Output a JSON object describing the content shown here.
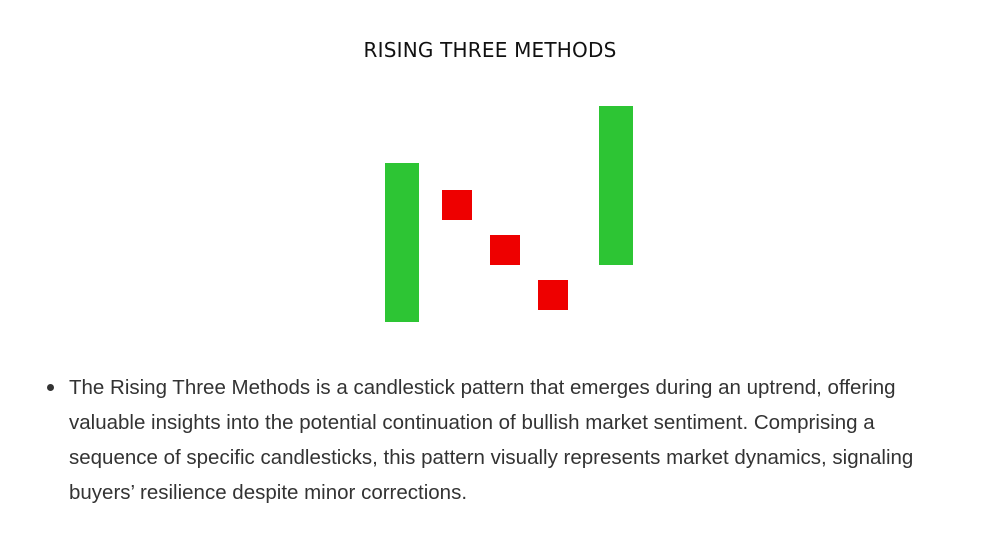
{
  "title": "RISING THREE METHODS",
  "colors": {
    "bullish": "#2dc534",
    "bearish": "#ee0000",
    "text": "#333333"
  },
  "pattern": {
    "candles": [
      {
        "direction": "bullish",
        "open": 0,
        "close": 5.3
      },
      {
        "direction": "bearish",
        "open": 4.4,
        "close": 3.4
      },
      {
        "direction": "bearish",
        "open": 2.9,
        "close": 1.9
      },
      {
        "direction": "bearish",
        "open": 1.4,
        "close": 0.4
      },
      {
        "direction": "bullish",
        "open": 1.9,
        "close": 7.2
      }
    ]
  },
  "bullets": [
    {
      "text": "The Rising Three Methods is a candlestick pattern that emerges during an uptrend, offering valuable insights into the potential continuation of bullish market sentiment. Comprising a sequence of specific candlesticks, this pattern visually represents market dynamics, signaling buyers’ resilience despite minor corrections."
    }
  ]
}
